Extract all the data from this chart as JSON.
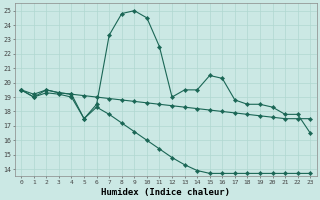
{
  "xlabel": "Humidex (Indice chaleur)",
  "background_color": "#cbe8e4",
  "grid_color": "#b0d8d0",
  "line_color": "#1a6655",
  "xlim": [
    -0.5,
    23.5
  ],
  "ylim": [
    13.5,
    25.5
  ],
  "yticks": [
    14,
    15,
    16,
    17,
    18,
    19,
    20,
    21,
    22,
    23,
    24,
    25
  ],
  "xticks": [
    0,
    1,
    2,
    3,
    4,
    5,
    6,
    7,
    8,
    9,
    10,
    11,
    12,
    13,
    14,
    15,
    16,
    17,
    18,
    19,
    20,
    21,
    22,
    23
  ],
  "s1_y": [
    19.5,
    19.0,
    19.5,
    19.3,
    19.2,
    17.5,
    18.5,
    23.3,
    24.8,
    25.0,
    24.5,
    22.5,
    19.0,
    19.5,
    19.5,
    20.5,
    20.3,
    18.8,
    18.5,
    18.5,
    18.3,
    17.8,
    17.8,
    16.5
  ],
  "s2_y": [
    19.5,
    19.2,
    19.5,
    19.3,
    19.2,
    19.1,
    19.0,
    18.9,
    18.8,
    18.7,
    18.6,
    18.5,
    18.4,
    18.3,
    18.2,
    18.1,
    18.0,
    17.9,
    17.8,
    17.7,
    17.6,
    17.5,
    17.5,
    17.5
  ],
  "s3_y": [
    19.5,
    19.0,
    19.3,
    19.2,
    19.0,
    17.5,
    18.3,
    17.8,
    17.2,
    16.6,
    16.0,
    15.4,
    14.8,
    14.3,
    13.9,
    13.7,
    13.7,
    13.7,
    13.7,
    13.7,
    13.7,
    13.7,
    13.7,
    13.7
  ]
}
